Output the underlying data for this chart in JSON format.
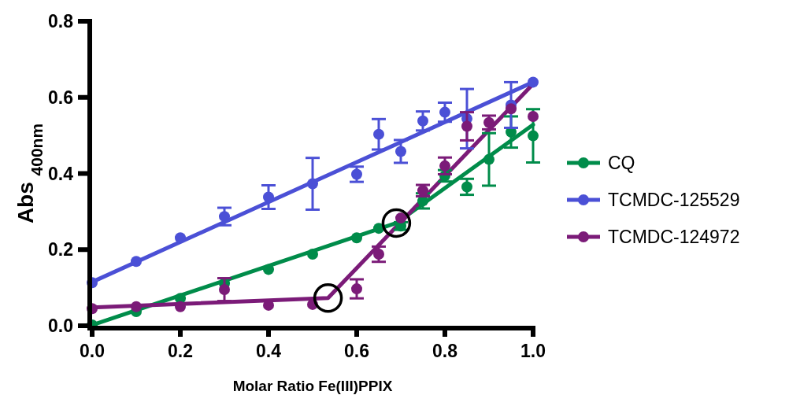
{
  "chart_data": {
    "type": "scatter",
    "xlabel": "Molar Ratio Fe(III)PPIX",
    "ylabel": "Abs $_{400nm}$",
    "xlim": [
      0,
      1
    ],
    "ylim": [
      0,
      0.8
    ],
    "xticks": [
      {
        "value": 0,
        "label": "0.0"
      },
      0.2,
      0.4,
      0.6,
      0.8,
      {
        "value": 1,
        "label": "1.0"
      }
    ],
    "yticks": [
      {
        "value": 0,
        "label": "0.0"
      },
      0.2,
      0.4,
      0.6,
      0.8
    ],
    "legend": "right",
    "marker": "circle",
    "grid": false,
    "series": [
      {
        "name": "CQ",
        "color": "#008c4a",
        "x": [
          0,
          0.1,
          0.2,
          0.3,
          0.4,
          0.5,
          0.6,
          0.65,
          0.7,
          0.75,
          0.8,
          0.85,
          0.9,
          0.95,
          1
        ],
        "values": [
          0.002,
          0.037,
          0.072,
          0.111,
          0.148,
          0.188,
          0.231,
          0.256,
          0.262,
          0.328,
          0.394,
          0.365,
          0.437,
          0.509,
          0.499
        ],
        "errors": [
          null,
          null,
          null,
          null,
          null,
          null,
          null,
          null,
          0.01,
          0.02,
          0.015,
          0.021,
          0.069,
          0.041,
          0.07
        ]
      },
      {
        "name": "TCMDC-125529",
        "color": "#4b50d6",
        "x": [
          0,
          0.1,
          0.2,
          0.3,
          0.4,
          0.5,
          0.6,
          0.65,
          0.7,
          0.75,
          0.8,
          0.85,
          0.95,
          1
        ],
        "values": [
          0.113,
          0.169,
          0.231,
          0.287,
          0.338,
          0.373,
          0.398,
          0.503,
          0.458,
          0.538,
          0.561,
          0.544,
          0.58,
          0.64
        ],
        "errors": [
          null,
          null,
          null,
          0.023,
          0.031,
          0.068,
          0.02,
          0.04,
          0.03,
          0.025,
          0.025,
          0.078,
          0.06,
          null
        ]
      },
      {
        "name": "TCMDC-124972",
        "color": "#7b1b78",
        "x": [
          0,
          0.1,
          0.2,
          0.3,
          0.4,
          0.5,
          0.6,
          0.65,
          0.7,
          0.75,
          0.8,
          0.85,
          0.9,
          0.95,
          1
        ],
        "values": [
          0.045,
          0.05,
          0.05,
          0.095,
          0.054,
          0.056,
          0.097,
          0.188,
          0.283,
          0.355,
          0.42,
          0.524,
          0.534,
          0.57,
          0.55
        ],
        "errors": [
          null,
          null,
          null,
          0.03,
          null,
          null,
          0.025,
          0.02,
          null,
          0.015,
          0.022,
          0.037,
          0.018,
          null,
          null
        ]
      },
      {
        "type": "line",
        "marker": "none",
        "color": "#008c4a",
        "x": [
          0,
          0.69,
          1
        ],
        "values": [
          0.002,
          0.27,
          0.528
        ]
      },
      {
        "type": "line",
        "marker": "none",
        "color": "#4b50d6",
        "x": [
          0,
          1
        ],
        "values": [
          0.115,
          0.64
        ]
      },
      {
        "type": "line",
        "marker": "none",
        "color": "#7b1b78",
        "x": [
          0,
          0.535,
          1
        ],
        "values": [
          0.048,
          0.073,
          0.635
        ]
      }
    ]
  }
}
